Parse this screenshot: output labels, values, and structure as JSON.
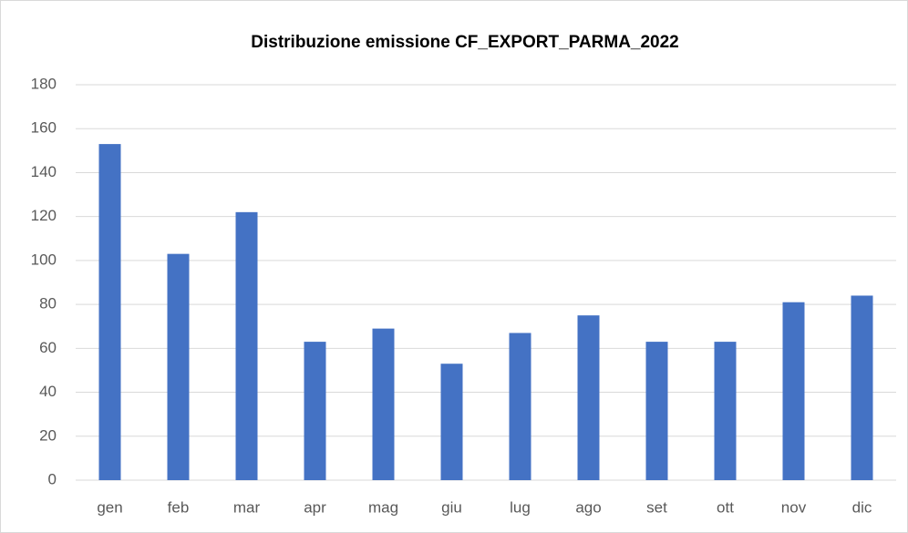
{
  "chart_data": {
    "type": "bar",
    "title": "Distribuzione emissione CF_EXPORT_PARMA_2022",
    "categories": [
      "gen",
      "feb",
      "mar",
      "apr",
      "mag",
      "giu",
      "lug",
      "ago",
      "set",
      "ott",
      "nov",
      "dic"
    ],
    "values": [
      153,
      103,
      122,
      63,
      69,
      53,
      67,
      75,
      63,
      63,
      81,
      84
    ],
    "color": "#4472c4",
    "ylim": [
      0,
      180
    ],
    "yticks": [
      0,
      20,
      40,
      60,
      80,
      100,
      120,
      140,
      160,
      180
    ],
    "grid": true
  }
}
